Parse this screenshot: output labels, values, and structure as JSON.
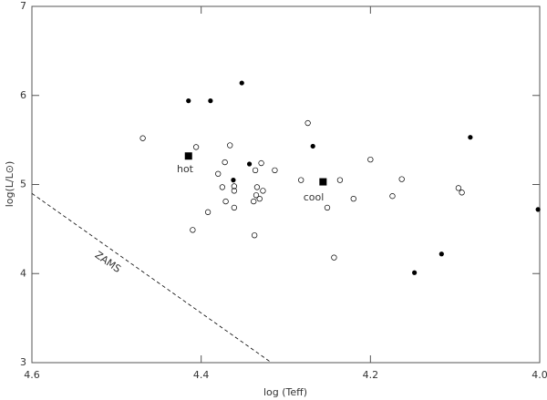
{
  "chart_data": {
    "type": "scatter",
    "xlabel": "log (Teff)",
    "ylabel": "log(L/L⊙)",
    "xlim": [
      4.6,
      4.0
    ],
    "ylim": [
      3,
      7
    ],
    "xticks": [
      4.6,
      4.4,
      4.2,
      {
        "value": 4,
        "label": "4.0"
      }
    ],
    "yticks": [
      3,
      4,
      5,
      6,
      7
    ],
    "series": [
      {
        "marker": "filled",
        "color": "#000000",
        "x": [
          4.415,
          4.389,
          4.352,
          4.343,
          4.362,
          4.268,
          4.082,
          4.002,
          4.116,
          4.148
        ],
        "y": [
          5.94,
          5.94,
          6.14,
          5.23,
          5.05,
          5.43,
          5.53,
          4.72,
          4.22,
          4.01
        ]
      },
      {
        "marker": "open",
        "color": "#000000",
        "x": [
          4.469,
          4.406,
          4.366,
          4.372,
          4.329,
          4.313,
          4.38,
          4.375,
          4.361,
          4.361,
          4.336,
          4.334,
          4.335,
          4.327,
          4.338,
          4.331,
          4.371,
          4.361,
          4.392,
          4.41,
          4.337,
          4.274,
          4.282,
          4.236,
          4.251,
          4.22,
          4.2,
          4.163,
          4.174,
          4.096,
          4.092,
          4.243
        ],
        "y": [
          5.52,
          5.42,
          5.44,
          5.25,
          5.24,
          5.16,
          5.12,
          4.97,
          4.98,
          4.93,
          5.16,
          4.97,
          4.88,
          4.93,
          4.81,
          4.84,
          4.81,
          4.74,
          4.69,
          4.49,
          4.43,
          5.69,
          5.05,
          5.05,
          4.74,
          4.84,
          5.28,
          5.06,
          4.87,
          4.96,
          4.91,
          4.18
        ]
      },
      {
        "marker": "square",
        "color": "#000000",
        "x": [
          4.415,
          4.256
        ],
        "y": [
          5.32,
          5.03
        ]
      }
    ],
    "lines": [
      {
        "style": "dashed",
        "color": "#000000",
        "x": [
          4.6,
          4.317
        ],
        "y": [
          4.9,
          3.0
        ]
      }
    ],
    "annotations": [
      "hot",
      "cool",
      "ZAMS"
    ]
  }
}
